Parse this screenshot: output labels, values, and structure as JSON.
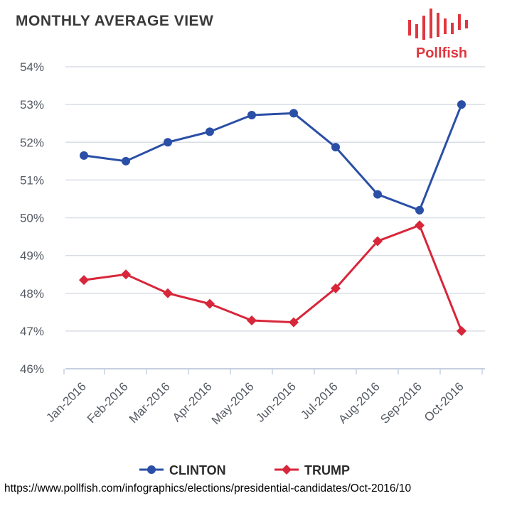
{
  "header": {
    "title": "MONTHLY AVERAGE VIEW"
  },
  "logo": {
    "text": "Pollfish",
    "color": "#e0373f",
    "icon": "bar-wave-logo"
  },
  "source": "https://www.pollfish.com/infographics/elections/presidential-candidates/Oct-2016/10",
  "chart_data": {
    "type": "line",
    "title": "MONTHLY AVERAGE VIEW",
    "xlabel": "",
    "ylabel": "",
    "categories": [
      "Jan-2016",
      "Feb-2016",
      "Mar-2016",
      "Apr-2016",
      "May-2016",
      "Jun-2016",
      "Jul-2016",
      "Aug-2016",
      "Sep-2016",
      "Oct-2016"
    ],
    "y_ticks": [
      "46%",
      "47%",
      "48%",
      "49%",
      "50%",
      "51%",
      "52%",
      "53%",
      "54%"
    ],
    "ylim": [
      46,
      54
    ],
    "grid": true,
    "legend_position": "bottom-center",
    "series": [
      {
        "name": "CLINTON",
        "color": "#2a4fa6",
        "marker": "circle",
        "values": [
          51.65,
          51.5,
          52.0,
          52.28,
          52.72,
          52.77,
          51.87,
          50.62,
          50.2,
          53.0
        ]
      },
      {
        "name": "TRUMP",
        "color": "#d8263a",
        "marker": "diamond",
        "values": [
          48.35,
          48.5,
          48.0,
          47.72,
          47.28,
          47.23,
          48.13,
          49.38,
          49.8,
          47.0
        ]
      }
    ]
  }
}
